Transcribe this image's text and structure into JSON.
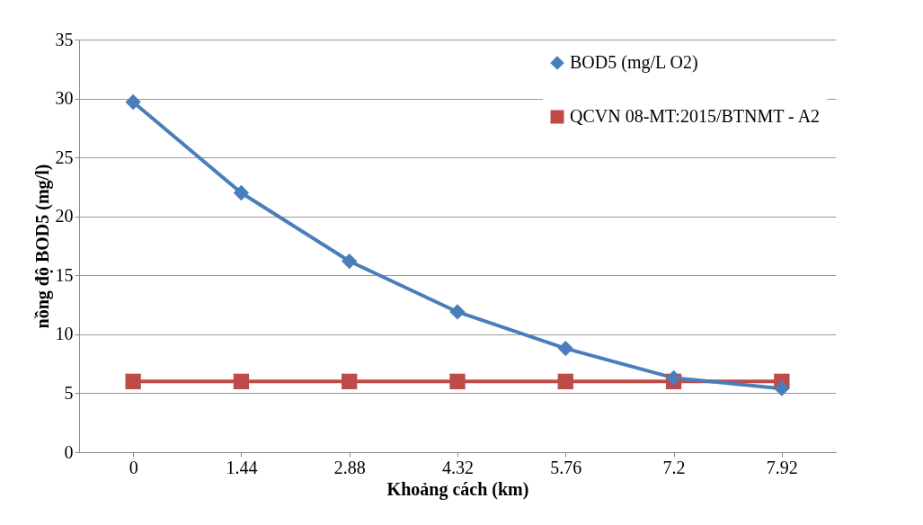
{
  "chart_data": {
    "type": "line",
    "xlabel": "Khoảng cách (km)",
    "ylabel": "nồng độ BOD5 (mg/l)",
    "categories": [
      "0",
      "1.44",
      "2.88",
      "4.32",
      "5.76",
      "7.2",
      "7.92"
    ],
    "series": [
      {
        "name": "BOD5 (mg/L O2)",
        "color": "#4a7ebb",
        "marker": "diamond",
        "values": [
          29.7,
          22.0,
          16.2,
          11.9,
          8.8,
          6.3,
          5.4
        ]
      },
      {
        "name": "QCVN 08-MT:2015/BTNMT - A2",
        "color": "#be4b48",
        "marker": "square",
        "values": [
          6,
          6,
          6,
          6,
          6,
          6,
          6
        ]
      }
    ],
    "ylim": [
      0,
      35
    ],
    "yticks": [
      0,
      5,
      10,
      15,
      20,
      25,
      30,
      35
    ],
    "grid": "y",
    "legend": "top right",
    "line_style": "solid"
  }
}
